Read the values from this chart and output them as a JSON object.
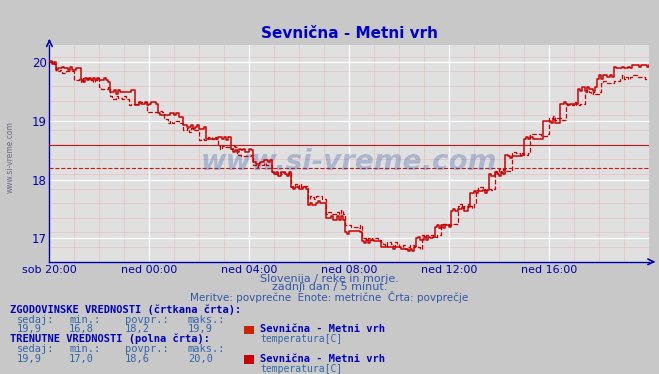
{
  "title": "Sevnična - Metni vrh",
  "background_color": "#c8c8c8",
  "plot_bg_color": "#e0e0e0",
  "x_labels": [
    "sob 20:00",
    "ned 00:00",
    "ned 04:00",
    "ned 08:00",
    "ned 12:00",
    "ned 16:00"
  ],
  "x_ticks_norm": [
    0.0,
    0.1667,
    0.3333,
    0.5,
    0.6667,
    0.8333
  ],
  "y_min": 16.6,
  "y_max": 20.3,
  "y_ticks": [
    17,
    18,
    19,
    20
  ],
  "title_color": "#0000cc",
  "axis_color": "#0000aa",
  "line_color_solid": "#cc0000",
  "line_color_dashed": "#cc0000",
  "watermark": "www.si-vreme.com",
  "subtitle1": "Slovenija / reke in morje.",
  "subtitle2": "zadnji dan / 5 minut.",
  "subtitle3": "Meritve: povprečne  Enote: metrične  Črta: povprečje",
  "legend1_title": "ZGODOVINSKE VREDNOSTI (črtkana črta):",
  "legend1_sedaj": "19,9",
  "legend1_min": "16,8",
  "legend1_povpr": "18,2",
  "legend1_maks": "19,9",
  "legend1_name": "Sevnična - Metni vrh",
  "legend1_label": "temperatura[C]",
  "legend1_color": "#cc2200",
  "legend2_title": "TRENUTNE VREDNOSTI (polna črta):",
  "legend2_sedaj": "19,9",
  "legend2_min": "17,0",
  "legend2_povpr": "18,6",
  "legend2_maks": "20,0",
  "legend2_name": "Sevnična - Metni vrh",
  "legend2_label": "temperatura[C]",
  "legend2_color": "#cc0000",
  "avg_dashed_line": 18.2,
  "avg_solid_line": 18.6,
  "n_points": 289
}
